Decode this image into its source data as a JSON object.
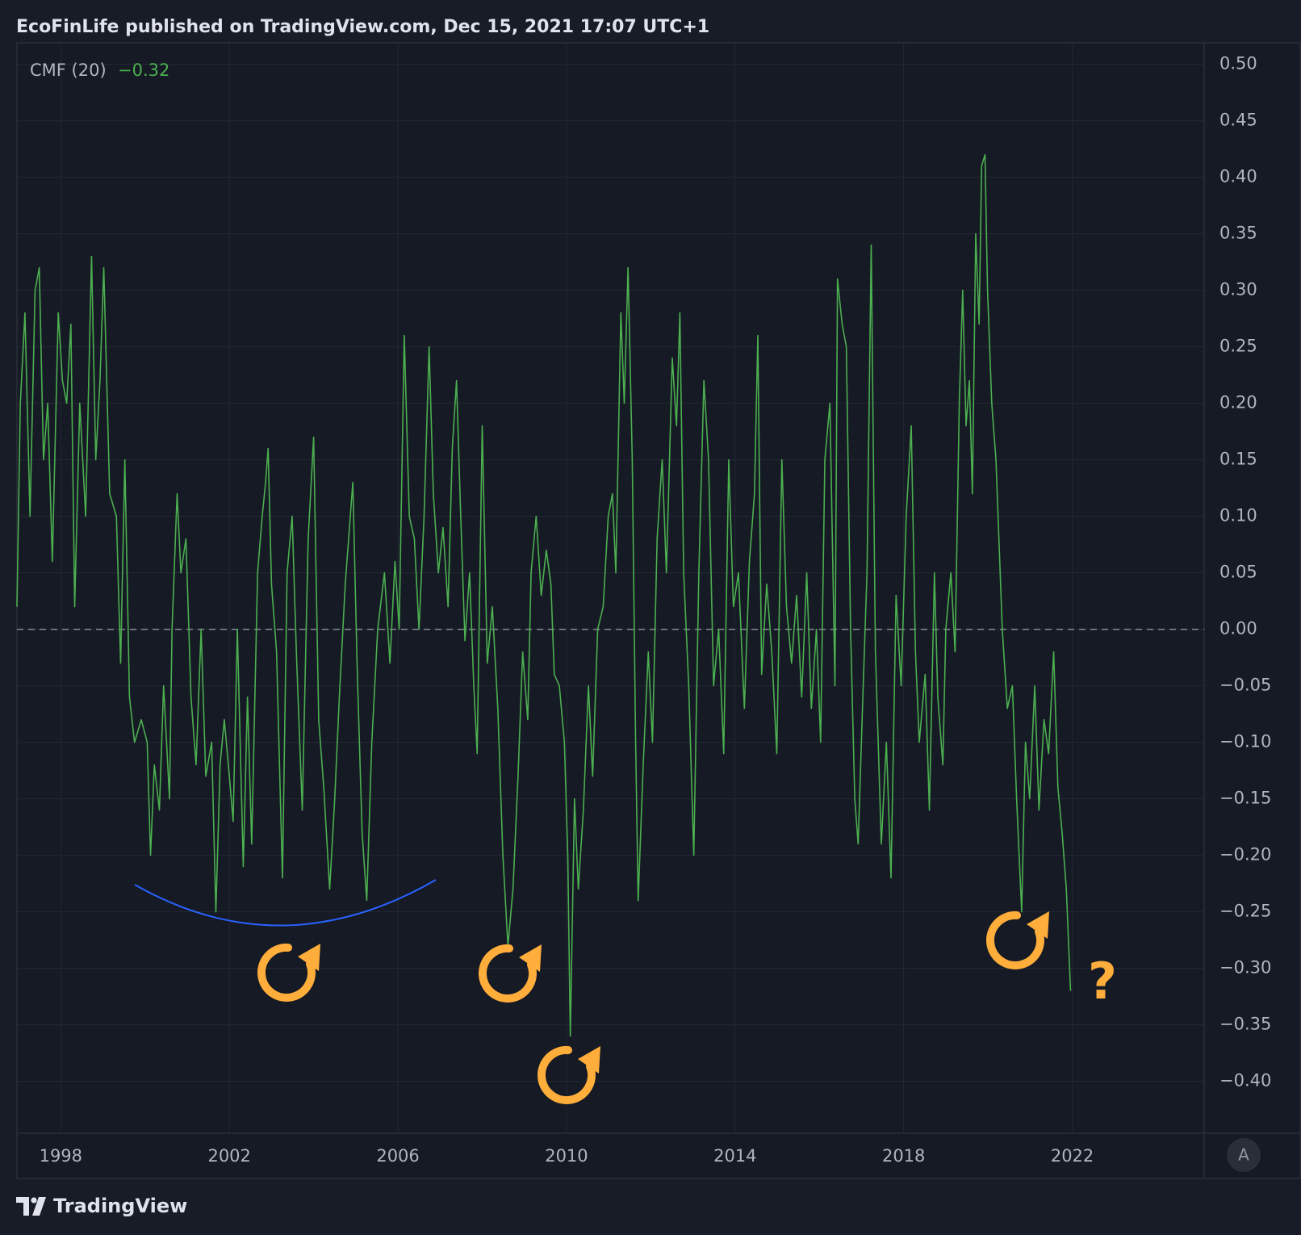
{
  "chart_data": {
    "type": "line",
    "header": "EcoFinLife published on TradingView.com, Dec 15, 2021 17:07 UTC+1",
    "brand": "TradingView",
    "auto_scale_button": "A",
    "annotation": "?",
    "x": [
      1996.96,
      1997.04,
      1997.15,
      1997.27,
      1997.39,
      1997.49,
      1997.59,
      1997.69,
      1997.8,
      1997.94,
      1998.04,
      1998.14,
      1998.24,
      1998.33,
      1998.45,
      1998.59,
      1998.73,
      1998.83,
      1998.93,
      1999.02,
      1999.16,
      1999.32,
      1999.42,
      1999.52,
      1999.63,
      1999.75,
      1999.91,
      2000.05,
      2000.13,
      2000.22,
      2000.34,
      2000.44,
      2000.58,
      2000.64,
      2000.76,
      2000.85,
      2000.97,
      2001.09,
      2001.21,
      2001.33,
      2001.44,
      2001.58,
      2001.68,
      2001.78,
      2001.88,
      2002.0,
      2002.09,
      2002.19,
      2002.33,
      2002.43,
      2002.53,
      2002.67,
      2002.78,
      2002.86,
      2002.92,
      2003.0,
      2003.12,
      2003.26,
      2003.37,
      2003.49,
      2003.59,
      2003.73,
      2003.87,
      2004.0,
      2004.12,
      2004.24,
      2004.38,
      2004.5,
      2004.61,
      2004.75,
      2004.93,
      2005.03,
      2005.15,
      2005.26,
      2005.38,
      2005.52,
      2005.68,
      2005.81,
      2005.93,
      2006.03,
      2006.15,
      2006.27,
      2006.39,
      2006.5,
      2006.62,
      2006.74,
      2006.84,
      2006.96,
      2007.07,
      2007.19,
      2007.29,
      2007.39,
      2007.49,
      2007.59,
      2007.7,
      2007.8,
      2007.88,
      2008.0,
      2008.12,
      2008.24,
      2008.37,
      2008.49,
      2008.61,
      2008.73,
      2008.85,
      2008.96,
      2009.08,
      2009.16,
      2009.28,
      2009.4,
      2009.52,
      2009.63,
      2009.71,
      2009.83,
      2009.95,
      2010.03,
      2010.09,
      2010.19,
      2010.28,
      2010.4,
      2010.52,
      2010.62,
      2010.74,
      2010.87,
      2010.99,
      2011.09,
      2011.17,
      2011.29,
      2011.37,
      2011.46,
      2011.56,
      2011.64,
      2011.7,
      2011.82,
      2011.94,
      2012.04,
      2012.15,
      2012.27,
      2012.37,
      2012.51,
      2012.61,
      2012.69,
      2012.78,
      2012.9,
      2013.02,
      2013.14,
      2013.26,
      2013.37,
      2013.49,
      2013.61,
      2013.73,
      2013.85,
      2013.96,
      2014.08,
      2014.22,
      2014.34,
      2014.46,
      2014.54,
      2014.63,
      2014.75,
      2014.87,
      2014.99,
      2015.11,
      2015.22,
      2015.34,
      2015.46,
      2015.58,
      2015.7,
      2015.81,
      2015.93,
      2016.03,
      2016.13,
      2016.25,
      2016.37,
      2016.43,
      2016.54,
      2016.64,
      2016.74,
      2016.84,
      2016.92,
      2017.04,
      2017.13,
      2017.23,
      2017.33,
      2017.47,
      2017.59,
      2017.7,
      2017.82,
      2017.94,
      2018.06,
      2018.18,
      2018.28,
      2018.37,
      2018.51,
      2018.61,
      2018.73,
      2018.81,
      2018.93,
      2019.0,
      2019.12,
      2019.22,
      2019.32,
      2019.4,
      2019.48,
      2019.56,
      2019.63,
      2019.71,
      2019.79,
      2019.85,
      2019.93,
      2019.99,
      2020.09,
      2020.19,
      2020.26,
      2020.34,
      2020.46,
      2020.58,
      2020.68,
      2020.8,
      2020.89,
      2020.99,
      2021.11,
      2021.21,
      2021.33,
      2021.44,
      2021.56,
      2021.66,
      2021.76,
      2021.86,
      2021.96
    ],
    "series": [
      {
        "name": "CMF (20)",
        "color": "#4caf50",
        "last_value_label": "−0.32",
        "values": [
          0.02,
          0.2,
          0.28,
          0.1,
          0.3,
          0.32,
          0.15,
          0.2,
          0.06,
          0.28,
          0.22,
          0.2,
          0.27,
          0.02,
          0.2,
          0.1,
          0.33,
          0.15,
          0.22,
          0.32,
          0.12,
          0.1,
          -0.03,
          0.15,
          -0.06,
          -0.1,
          -0.08,
          -0.1,
          -0.2,
          -0.12,
          -0.16,
          -0.05,
          -0.15,
          0.0,
          0.12,
          0.05,
          0.08,
          -0.06,
          -0.12,
          0.0,
          -0.13,
          -0.1,
          -0.25,
          -0.12,
          -0.08,
          -0.13,
          -0.17,
          0.0,
          -0.21,
          -0.06,
          -0.19,
          0.05,
          0.1,
          0.13,
          0.16,
          0.04,
          -0.02,
          -0.22,
          0.05,
          0.1,
          -0.02,
          -0.16,
          0.08,
          0.17,
          -0.08,
          -0.14,
          -0.23,
          -0.15,
          -0.06,
          0.04,
          0.13,
          -0.03,
          -0.18,
          -0.24,
          -0.1,
          0.0,
          0.05,
          -0.03,
          0.06,
          0.0,
          0.26,
          0.1,
          0.08,
          0.0,
          0.1,
          0.25,
          0.12,
          0.05,
          0.09,
          0.02,
          0.16,
          0.22,
          0.1,
          -0.01,
          0.05,
          -0.05,
          -0.11,
          0.18,
          -0.03,
          0.02,
          -0.07,
          -0.2,
          -0.28,
          -0.23,
          -0.13,
          -0.02,
          -0.08,
          0.05,
          0.1,
          0.03,
          0.07,
          0.04,
          -0.04,
          -0.05,
          -0.1,
          -0.2,
          -0.36,
          -0.15,
          -0.23,
          -0.16,
          -0.05,
          -0.13,
          0.0,
          0.02,
          0.1,
          0.12,
          0.05,
          0.28,
          0.2,
          0.32,
          0.15,
          -0.1,
          -0.24,
          -0.12,
          -0.02,
          -0.1,
          0.08,
          0.15,
          0.05,
          0.24,
          0.18,
          0.28,
          0.05,
          -0.05,
          -0.2,
          0.05,
          0.22,
          0.15,
          -0.05,
          0.0,
          -0.11,
          0.15,
          0.02,
          0.05,
          -0.07,
          0.06,
          0.12,
          0.26,
          -0.04,
          0.04,
          -0.02,
          -0.11,
          0.15,
          0.02,
          -0.03,
          0.03,
          -0.06,
          0.05,
          -0.07,
          0.0,
          -0.1,
          0.15,
          0.2,
          -0.05,
          0.31,
          0.27,
          0.25,
          0.0,
          -0.15,
          -0.19,
          -0.05,
          0.05,
          0.34,
          -0.02,
          -0.19,
          -0.1,
          -0.22,
          0.03,
          -0.05,
          0.1,
          0.18,
          -0.02,
          -0.1,
          -0.04,
          -0.16,
          0.05,
          -0.06,
          -0.12,
          0.0,
          0.05,
          -0.02,
          0.2,
          0.3,
          0.18,
          0.22,
          0.12,
          0.35,
          0.27,
          0.41,
          0.42,
          0.3,
          0.2,
          0.15,
          0.08,
          0.0,
          -0.07,
          -0.05,
          -0.15,
          -0.25,
          -0.1,
          -0.15,
          -0.05,
          -0.16,
          -0.08,
          -0.11,
          -0.02,
          -0.14,
          -0.18,
          -0.23,
          -0.32
        ]
      }
    ],
    "xlim": [
      1996.96,
      2025.13
    ],
    "ylim": [
      -0.446,
      0.519
    ],
    "xticks": [
      1998,
      2002,
      2006,
      2010,
      2014,
      2018,
      2022
    ],
    "yticks": [
      {
        "value": 0.5,
        "label": "0.50"
      },
      {
        "value": 0.45,
        "label": "0.45"
      },
      {
        "value": 0.4,
        "label": "0.40"
      },
      {
        "value": 0.35,
        "label": "0.35"
      },
      {
        "value": 0.3,
        "label": "0.30"
      },
      {
        "value": 0.25,
        "label": "0.25"
      },
      {
        "value": 0.2,
        "label": "0.20"
      },
      {
        "value": 0.15,
        "label": "0.15"
      },
      {
        "value": 0.1,
        "label": "0.10"
      },
      {
        "value": 0.05,
        "label": "0.05"
      },
      {
        "value": 0,
        "label": "0.00"
      },
      {
        "value": -0.05,
        "label": "−0.05"
      },
      {
        "value": -0.1,
        "label": "−0.10"
      },
      {
        "value": -0.15,
        "label": "−0.15"
      },
      {
        "value": -0.2,
        "label": "−0.20"
      },
      {
        "value": -0.25,
        "label": "−0.25"
      },
      {
        "value": -0.3,
        "label": "−0.30"
      },
      {
        "value": -0.35,
        "label": "−0.35"
      },
      {
        "value": -0.4,
        "label": "−0.40"
      }
    ],
    "zero_line": 0,
    "grid": true
  }
}
